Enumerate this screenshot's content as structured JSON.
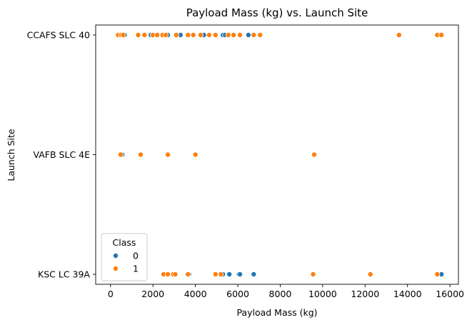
{
  "chart_data": {
    "type": "scatter",
    "title": "Payload Mass (kg) vs. Launch Site",
    "xlabel": "Payload Mass (kg)",
    "ylabel": "Launch Site",
    "xlim": [
      -700,
      16400
    ],
    "xticks": [
      0,
      2000,
      4000,
      6000,
      8000,
      10000,
      12000,
      14000,
      16000
    ],
    "categories": [
      "CCAFS SLC 40",
      "VAFB SLC 4E",
      "KSC LC 39A"
    ],
    "grid": false,
    "legend": {
      "title": "Class",
      "placement": "lower-left"
    },
    "series": [
      {
        "name": "0",
        "color": "#1f77b4",
        "points": [
          {
            "x": 670,
            "y": "CCAFS SLC 40"
          },
          {
            "x": 1900,
            "y": "CCAFS SLC 40"
          },
          {
            "x": 2000,
            "y": "CCAFS SLC 40"
          },
          {
            "x": 2700,
            "y": "CCAFS SLC 40"
          },
          {
            "x": 3300,
            "y": "CCAFS SLC 40"
          },
          {
            "x": 4400,
            "y": "CCAFS SLC 40"
          },
          {
            "x": 5300,
            "y": "CCAFS SLC 40"
          },
          {
            "x": 5400,
            "y": "CCAFS SLC 40"
          },
          {
            "x": 6500,
            "y": "CCAFS SLC 40"
          },
          {
            "x": 550,
            "y": "VAFB SLC 4E"
          },
          {
            "x": 3700,
            "y": "KSC LC 39A"
          },
          {
            "x": 5300,
            "y": "KSC LC 39A"
          },
          {
            "x": 5600,
            "y": "KSC LC 39A"
          },
          {
            "x": 6050,
            "y": "KSC LC 39A"
          },
          {
            "x": 6100,
            "y": "KSC LC 39A"
          },
          {
            "x": 6750,
            "y": "KSC LC 39A"
          },
          {
            "x": 15600,
            "y": "KSC LC 39A"
          }
        ]
      },
      {
        "name": "1",
        "color": "#ff7f0e",
        "points": [
          {
            "x": 360,
            "y": "CCAFS SLC 40"
          },
          {
            "x": 500,
            "y": "CCAFS SLC 40"
          },
          {
            "x": 600,
            "y": "CCAFS SLC 40"
          },
          {
            "x": 1300,
            "y": "CCAFS SLC 40"
          },
          {
            "x": 1600,
            "y": "CCAFS SLC 40"
          },
          {
            "x": 2000,
            "y": "CCAFS SLC 40"
          },
          {
            "x": 2200,
            "y": "CCAFS SLC 40"
          },
          {
            "x": 2450,
            "y": "CCAFS SLC 40"
          },
          {
            "x": 2600,
            "y": "CCAFS SLC 40"
          },
          {
            "x": 3100,
            "y": "CCAFS SLC 40"
          },
          {
            "x": 3650,
            "y": "CCAFS SLC 40"
          },
          {
            "x": 3900,
            "y": "CCAFS SLC 40"
          },
          {
            "x": 4250,
            "y": "CCAFS SLC 40"
          },
          {
            "x": 4650,
            "y": "CCAFS SLC 40"
          },
          {
            "x": 4950,
            "y": "CCAFS SLC 40"
          },
          {
            "x": 5550,
            "y": "CCAFS SLC 40"
          },
          {
            "x": 5800,
            "y": "CCAFS SLC 40"
          },
          {
            "x": 6100,
            "y": "CCAFS SLC 40"
          },
          {
            "x": 6750,
            "y": "CCAFS SLC 40"
          },
          {
            "x": 7050,
            "y": "CCAFS SLC 40"
          },
          {
            "x": 13600,
            "y": "CCAFS SLC 40"
          },
          {
            "x": 15400,
            "y": "CCAFS SLC 40"
          },
          {
            "x": 15600,
            "y": "CCAFS SLC 40"
          },
          {
            "x": 480,
            "y": "VAFB SLC 4E"
          },
          {
            "x": 1420,
            "y": "VAFB SLC 4E"
          },
          {
            "x": 2700,
            "y": "VAFB SLC 4E"
          },
          {
            "x": 4000,
            "y": "VAFB SLC 4E"
          },
          {
            "x": 9600,
            "y": "VAFB SLC 4E"
          },
          {
            "x": 2500,
            "y": "KSC LC 39A"
          },
          {
            "x": 2700,
            "y": "KSC LC 39A"
          },
          {
            "x": 2950,
            "y": "KSC LC 39A"
          },
          {
            "x": 3050,
            "y": "KSC LC 39A"
          },
          {
            "x": 3650,
            "y": "KSC LC 39A"
          },
          {
            "x": 4950,
            "y": "KSC LC 39A"
          },
          {
            "x": 5200,
            "y": "KSC LC 39A"
          },
          {
            "x": 9550,
            "y": "KSC LC 39A"
          },
          {
            "x": 12250,
            "y": "KSC LC 39A"
          },
          {
            "x": 15400,
            "y": "KSC LC 39A"
          }
        ]
      }
    ]
  }
}
